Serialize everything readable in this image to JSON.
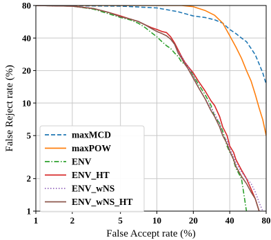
{
  "chart_data": {
    "type": "line",
    "xlabel": "False Accept rate (%)",
    "ylabel": "False Reject rate (%)",
    "x_scale": "log",
    "y_scale": "log",
    "xlim": [
      1,
      80
    ],
    "ylim": [
      1,
      80
    ],
    "x_ticks": [
      1,
      2,
      5,
      10,
      20,
      40,
      80
    ],
    "y_ticks": [
      1,
      2,
      5,
      10,
      20,
      40,
      80
    ],
    "grid": true,
    "legend_position": "bottom-left",
    "series": [
      {
        "name": "maxMCD",
        "color": "#1f77b4",
        "dash": "dashed",
        "points": [
          [
            1,
            80
          ],
          [
            5,
            79
          ],
          [
            10,
            76
          ],
          [
            15,
            70
          ],
          [
            20,
            64
          ],
          [
            25,
            62
          ],
          [
            30,
            59
          ],
          [
            35,
            55
          ],
          [
            40,
            48
          ],
          [
            45,
            44
          ],
          [
            50,
            40
          ],
          [
            55,
            37
          ],
          [
            60,
            32
          ],
          [
            65,
            28
          ],
          [
            70,
            23
          ],
          [
            75,
            19
          ],
          [
            80,
            15
          ]
        ]
      },
      {
        "name": "maxPOW",
        "color": "#ff7f0e",
        "dash": "solid",
        "points": [
          [
            1,
            80
          ],
          [
            10,
            80
          ],
          [
            16,
            80
          ],
          [
            20,
            78
          ],
          [
            25,
            72
          ],
          [
            30,
            65
          ],
          [
            35,
            55
          ],
          [
            40,
            42
          ],
          [
            45,
            33
          ],
          [
            50,
            26
          ],
          [
            55,
            20
          ],
          [
            60,
            16
          ],
          [
            65,
            12
          ],
          [
            70,
            9
          ],
          [
            75,
            7
          ],
          [
            80,
            5
          ]
        ]
      },
      {
        "name": "ENV",
        "color": "#2ca02c",
        "dash": "dashdot",
        "points": [
          [
            1,
            80
          ],
          [
            2,
            79
          ],
          [
            3,
            74
          ],
          [
            4,
            67
          ],
          [
            5,
            62
          ],
          [
            6,
            59
          ],
          [
            7,
            55
          ],
          [
            8,
            50
          ],
          [
            9,
            45
          ],
          [
            10,
            41
          ],
          [
            11,
            37
          ],
          [
            12,
            34
          ],
          [
            13,
            32
          ],
          [
            14,
            29
          ],
          [
            15,
            27
          ],
          [
            16,
            24
          ],
          [
            18,
            22
          ],
          [
            20,
            18
          ],
          [
            22,
            15
          ],
          [
            25,
            12
          ],
          [
            28,
            9.5
          ],
          [
            30,
            7.5
          ],
          [
            33,
            6.5
          ],
          [
            35,
            5.5
          ],
          [
            38,
            4
          ],
          [
            40,
            3.5
          ],
          [
            42,
            3.2
          ],
          [
            45,
            2.5
          ],
          [
            50,
            2
          ],
          [
            52,
            1.5
          ],
          [
            55,
            1
          ]
        ]
      },
      {
        "name": "ENV_HT",
        "color": "#d62728",
        "dash": "solid",
        "points": [
          [
            1,
            80
          ],
          [
            2,
            79
          ],
          [
            3,
            75
          ],
          [
            4,
            69
          ],
          [
            5,
            64
          ],
          [
            6,
            60
          ],
          [
            7,
            57
          ],
          [
            8,
            53
          ],
          [
            9,
            50
          ],
          [
            10,
            48
          ],
          [
            11,
            46
          ],
          [
            12,
            45
          ],
          [
            13,
            41
          ],
          [
            14,
            36
          ],
          [
            15,
            31
          ],
          [
            16,
            27
          ],
          [
            17,
            24
          ],
          [
            18,
            22
          ],
          [
            20,
            19
          ],
          [
            22,
            16
          ],
          [
            25,
            13
          ],
          [
            28,
            10.5
          ],
          [
            30,
            9.5
          ],
          [
            33,
            7.5
          ],
          [
            35,
            6
          ],
          [
            38,
            5
          ],
          [
            40,
            4
          ],
          [
            43,
            3.5
          ],
          [
            45,
            3
          ],
          [
            50,
            2.4
          ],
          [
            55,
            2
          ],
          [
            60,
            1.6
          ],
          [
            65,
            1.3
          ],
          [
            70,
            1
          ]
        ]
      },
      {
        "name": "ENV_wNS",
        "color": "#9467bd",
        "dash": "dotted",
        "points": [
          [
            1,
            80
          ],
          [
            2,
            79
          ],
          [
            3,
            75
          ],
          [
            4,
            69
          ],
          [
            5,
            63
          ],
          [
            6,
            60
          ],
          [
            7,
            57
          ],
          [
            8,
            53
          ],
          [
            9,
            49
          ],
          [
            10,
            46
          ],
          [
            11,
            44
          ],
          [
            12,
            42
          ],
          [
            13,
            39
          ],
          [
            14,
            35
          ],
          [
            15,
            30
          ],
          [
            16,
            27
          ],
          [
            17,
            24
          ],
          [
            18,
            22
          ],
          [
            20,
            18
          ],
          [
            22,
            14
          ],
          [
            25,
            11
          ],
          [
            28,
            9
          ],
          [
            30,
            8
          ],
          [
            33,
            6.5
          ],
          [
            35,
            5
          ],
          [
            38,
            4.5
          ],
          [
            40,
            3.8
          ],
          [
            43,
            3.2
          ],
          [
            45,
            2.8
          ],
          [
            50,
            2.3
          ],
          [
            55,
            2
          ],
          [
            60,
            1.8
          ],
          [
            65,
            1.5
          ],
          [
            70,
            1.2
          ],
          [
            75,
            1
          ]
        ]
      },
      {
        "name": "ENV_wNS_HT",
        "color": "#8c564b",
        "dash": "solid",
        "points": [
          [
            1,
            80
          ],
          [
            2,
            79
          ],
          [
            3,
            75
          ],
          [
            4,
            69
          ],
          [
            5,
            63
          ],
          [
            6,
            60
          ],
          [
            7,
            57
          ],
          [
            8,
            53
          ],
          [
            9,
            49
          ],
          [
            10,
            46
          ],
          [
            11,
            44
          ],
          [
            12,
            42
          ],
          [
            13,
            39
          ],
          [
            14,
            35
          ],
          [
            15,
            29
          ],
          [
            16,
            26
          ],
          [
            17,
            23
          ],
          [
            18,
            21
          ],
          [
            20,
            17
          ],
          [
            22,
            14
          ],
          [
            25,
            11
          ],
          [
            28,
            8.5
          ],
          [
            30,
            7.5
          ],
          [
            33,
            6
          ],
          [
            35,
            5
          ],
          [
            38,
            4.2
          ],
          [
            40,
            3.6
          ],
          [
            43,
            3
          ],
          [
            45,
            2.6
          ],
          [
            50,
            2.1
          ],
          [
            55,
            1.8
          ],
          [
            60,
            1.5
          ],
          [
            65,
            1.3
          ],
          [
            70,
            1
          ]
        ]
      }
    ]
  }
}
